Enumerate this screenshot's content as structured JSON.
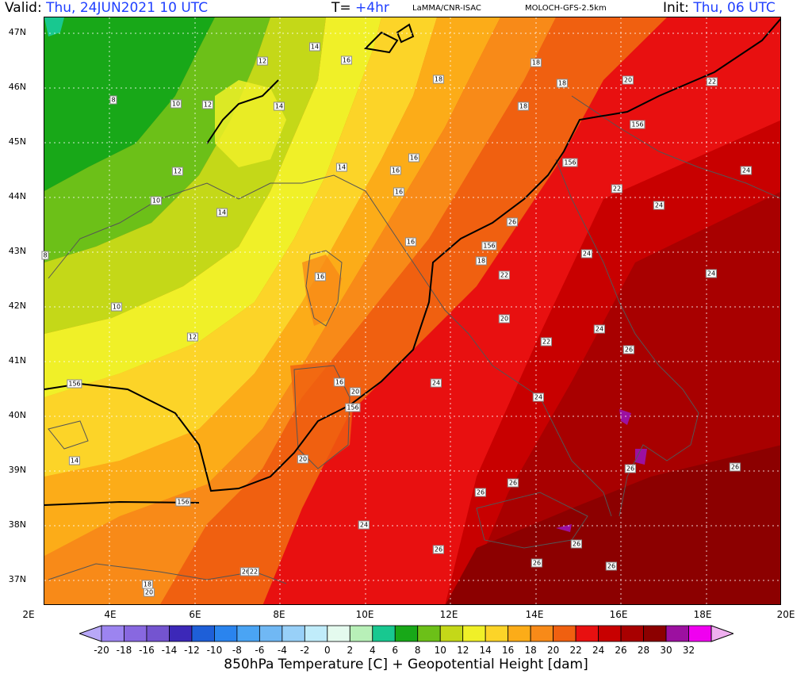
{
  "header": {
    "valid_label": "Valid:",
    "valid_value": "Thu, 24JUN2021  10 UTC",
    "forecast_label": "T=",
    "forecast_value": "+4hr",
    "source": "LaMMA/CNR-ISAC",
    "model": "MOLOCH-GFS-2.5km",
    "init_label": "Init:",
    "init_value": "Thu, 06 UTC"
  },
  "map": {
    "lat_labels": [
      "47N",
      "46N",
      "45N",
      "44N",
      "43N",
      "42N",
      "41N",
      "40N",
      "39N",
      "38N",
      "37N"
    ],
    "lon_labels": [
      "2E",
      "4E",
      "6E",
      "8E",
      "10E",
      "12E",
      "14E",
      "16E",
      "18E",
      "20E"
    ],
    "contour_labels": [
      "8",
      "10",
      "12",
      "12",
      "10",
      "14",
      "14",
      "16",
      "14",
      "16",
      "18",
      "18",
      "20",
      "22",
      "8",
      "12",
      "10",
      "12",
      "14",
      "16",
      "16",
      "16",
      "18",
      "156",
      "18",
      "156",
      "22",
      "24",
      "24",
      "24",
      "26",
      "22",
      "20",
      "24",
      "22",
      "24",
      "26",
      "24",
      "156",
      "16",
      "10",
      "12",
      "14",
      "156",
      "16",
      "20",
      "156",
      "20",
      "24",
      "24",
      "26",
      "26",
      "26",
      "26",
      "26",
      "24",
      "26",
      "26",
      "26",
      "26",
      "20",
      "18",
      "22",
      "156",
      "26",
      "24",
      "18",
      "16",
      "14"
    ],
    "colors": {
      "ocean_base": "#c80000"
    }
  },
  "colorbar": {
    "ticks": [
      "-20",
      "-18",
      "-16",
      "-14",
      "-12",
      "-10",
      "-8",
      "-6",
      "-4",
      "-2",
      "0",
      "2",
      "4",
      "6",
      "8",
      "10",
      "12",
      "14",
      "16",
      "18",
      "20",
      "22",
      "24",
      "26",
      "28",
      "30",
      "32"
    ],
    "colors": [
      "#b8a8f8",
      "#9c84f0",
      "#8868e0",
      "#7454d0",
      "#3c28b8",
      "#1e5fd8",
      "#2a84ee",
      "#4aa4f4",
      "#70b8f4",
      "#98d0f8",
      "#c0ecfa",
      "#e4faee",
      "#b8f0b8",
      "#18c890",
      "#18a818",
      "#6cc018",
      "#c4d818",
      "#f0f028",
      "#fcd428",
      "#fcac18",
      "#f88a18",
      "#f06010",
      "#e81010",
      "#c80000",
      "#a80000",
      "#8c0000",
      "#9c10a0",
      "#f000f0",
      "#f0b0f0"
    ]
  },
  "title": "850hPa Temperature [C] + Geopotential Height [dam]"
}
